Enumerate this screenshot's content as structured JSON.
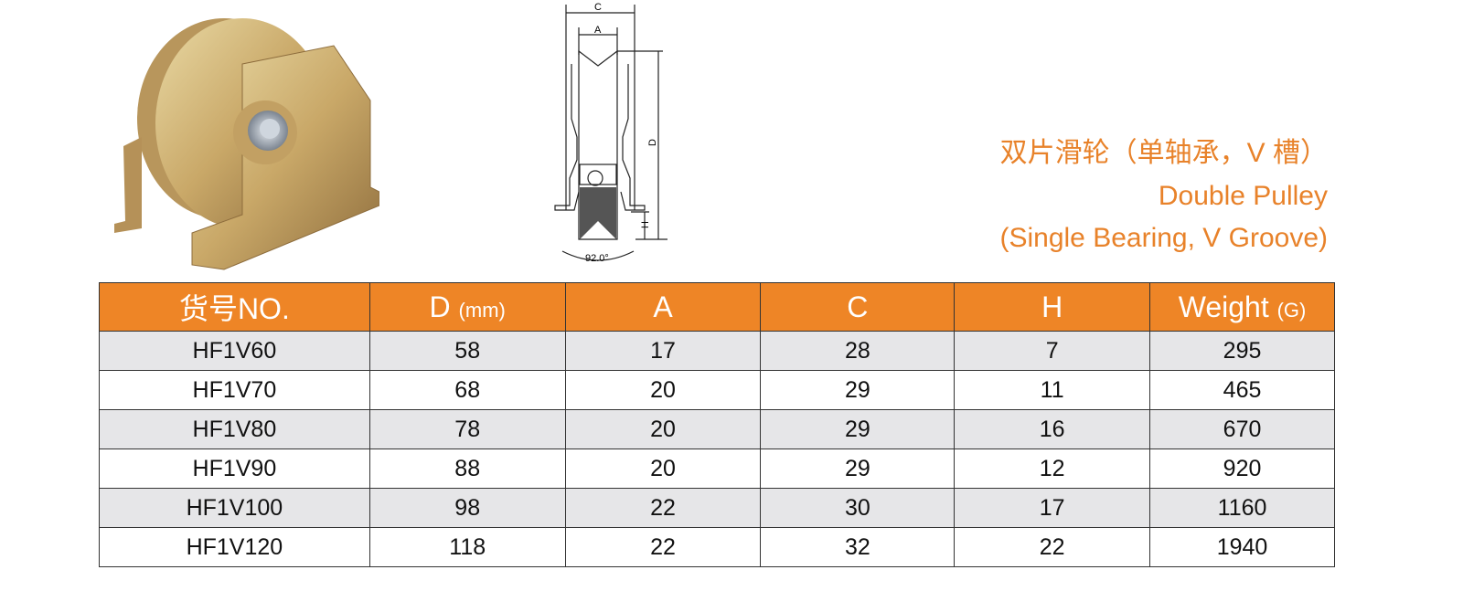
{
  "title": {
    "zh": "双片滑轮（单轴承，V 槽）",
    "en_line1": "Double Pulley",
    "en_line2": "(Single Bearing, V Groove)"
  },
  "drawing": {
    "labels": {
      "c": "C",
      "a": "A",
      "d": "D",
      "h": "H",
      "angle": "92.0°"
    }
  },
  "table": {
    "headers": [
      {
        "main": "货号NO.",
        "unit": ""
      },
      {
        "main": "D",
        "unit": "(mm)"
      },
      {
        "main": "A",
        "unit": ""
      },
      {
        "main": "C",
        "unit": ""
      },
      {
        "main": "H",
        "unit": ""
      },
      {
        "main": "Weight",
        "unit": "(G)"
      }
    ],
    "rows": [
      [
        "HF1V60",
        "58",
        "17",
        "28",
        "7",
        "295"
      ],
      [
        "HF1V70",
        "68",
        "20",
        "29",
        "11",
        "465"
      ],
      [
        "HF1V80",
        "78",
        "20",
        "29",
        "16",
        "670"
      ],
      [
        "HF1V90",
        "88",
        "20",
        "29",
        "12",
        "920"
      ],
      [
        "HF1V100",
        "98",
        "22",
        "30",
        "17",
        "1160"
      ],
      [
        "HF1V120",
        "118",
        "22",
        "32",
        "22",
        "1940"
      ]
    ]
  },
  "colors": {
    "accent": "#ee8526",
    "title": "#e8822a",
    "row_shade": "#e6e6e8"
  }
}
